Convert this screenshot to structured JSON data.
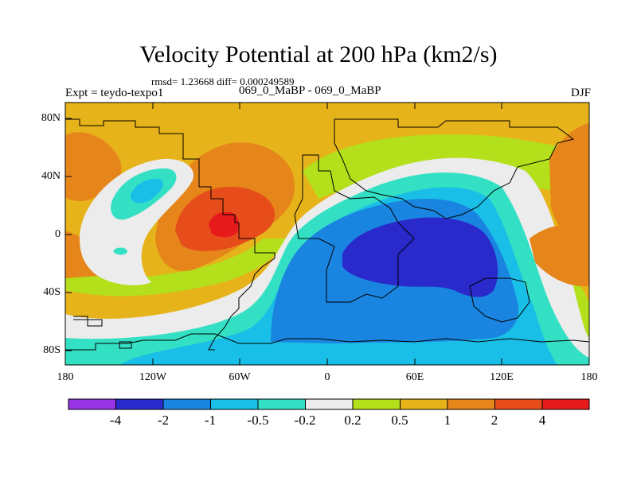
{
  "title": "Velocity Potential at 200 hPa (km2/s)",
  "stats_line": "rmsd= 1.23668 diff= 0.000249589",
  "left_label": "Expt = teydo-texpo1",
  "center_label": "069_0_MaBP - 069_0_MaBP",
  "right_label": "DJF",
  "y_ticks": [
    "80N",
    "40N",
    "0",
    "40S",
    "80S"
  ],
  "x_ticks": [
    "180",
    "120W",
    "60W",
    "0",
    "60E",
    "120E",
    "180"
  ],
  "colorbar": {
    "labels": [
      "-4",
      "-2",
      "-1",
      "-0.5",
      "-0.2",
      "0.2",
      "0.5",
      "1",
      "2",
      "4"
    ],
    "colors": [
      "#9933e6",
      "#2929cc",
      "#1a85e0",
      "#19bfe6",
      "#33e0c4",
      "#ececec",
      "#b3e01a",
      "#e6b319",
      "#e6851a",
      "#e64d1a",
      "#e61a1a"
    ]
  },
  "colors": {
    "background": "#e6b31a",
    "coastline": "#000000"
  }
}
